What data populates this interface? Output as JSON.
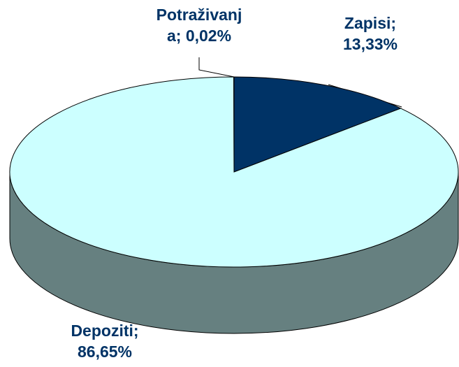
{
  "chart_data": {
    "type": "pie3d",
    "categories": [
      "Zapisi",
      "Depoziti",
      "Potraživanja"
    ],
    "values": [
      13.33,
      86.65,
      0.02
    ],
    "value_labels": [
      "13,33%",
      "86,65%",
      "0,02%"
    ],
    "colors": [
      "#003366",
      "#ccffff",
      "#9999ff"
    ]
  }
}
